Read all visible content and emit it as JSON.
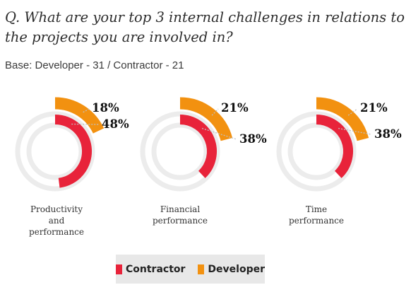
{
  "question": "Q. What are your top 3 internal challenges in relations to the projects you are involved in?",
  "base": "Base: Developer - 31 / Contractor - 21",
  "colors": {
    "contractor": "#e8233a",
    "developer": "#f29110",
    "track": "#ececec",
    "leader": "#bfbfbf"
  },
  "chart_data": {
    "type": "radial-bar",
    "series": [
      {
        "name": "Contractor",
        "color": "#e8233a",
        "values": [
          48,
          38,
          38
        ]
      },
      {
        "name": "Developer",
        "color": "#f29110",
        "values": [
          18,
          21,
          21
        ]
      }
    ],
    "categories": [
      {
        "lines": [
          "Productivity",
          "and",
          "performance"
        ]
      },
      {
        "lines": [
          "Financial",
          "performance"
        ]
      },
      {
        "lines": [
          "Time",
          "performance"
        ]
      }
    ],
    "value_labels": [
      {
        "developer": "18%",
        "contractor": "48%"
      },
      {
        "developer": "21%",
        "contractor": "38%"
      },
      {
        "developer": "21%",
        "contractor": "38%"
      }
    ]
  },
  "legend": {
    "contractor": "Contractor",
    "developer": "Developer"
  }
}
